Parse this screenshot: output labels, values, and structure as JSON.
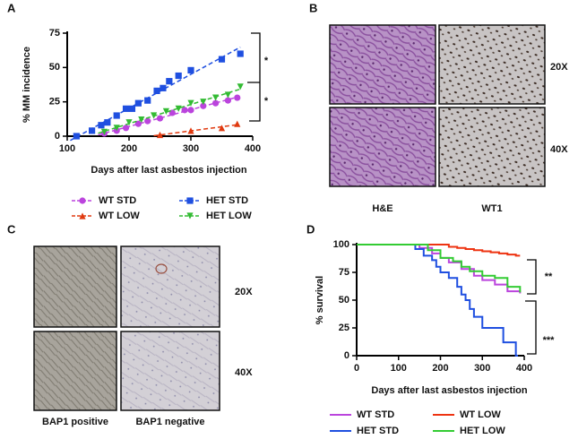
{
  "panel_labels": [
    "A",
    "B",
    "C",
    "D"
  ],
  "images": {
    "B": {
      "row_labels": [
        "20X",
        "40X"
      ],
      "column_labels": [
        "H&E",
        "WT1"
      ]
    },
    "C": {
      "row_labels": [
        "20X",
        "40X"
      ],
      "column_labels": [
        "BAP1 positive",
        "BAP1 negative"
      ]
    }
  },
  "chart_data": [
    {
      "type": "scatter",
      "ylabel": "% MM incidence",
      "xlabel": "Days after last asbestos injection",
      "xlim": [
        100,
        400
      ],
      "xticks": [
        100,
        200,
        300,
        400
      ],
      "ylim": [
        0,
        75
      ],
      "yticks": [
        0,
        25,
        50,
        75
      ],
      "trend_lines": true,
      "annotations": [
        "*",
        "*"
      ],
      "series": [
        {
          "name": "WT STD",
          "color": "#bb44dd",
          "marker": "circle",
          "x": [
            160,
            180,
            195,
            215,
            230,
            250,
            270,
            290,
            300,
            320,
            340,
            360,
            375
          ],
          "values": [
            2,
            4,
            6,
            9,
            11,
            13,
            17,
            19,
            19,
            22,
            24,
            26,
            28
          ]
        },
        {
          "name": "HET STD",
          "color": "#1f4fe0",
          "marker": "square",
          "x": [
            115,
            140,
            155,
            165,
            180,
            195,
            205,
            215,
            230,
            245,
            255,
            265,
            280,
            300,
            350,
            380
          ],
          "values": [
            0,
            4,
            8,
            10,
            15,
            20,
            20,
            24,
            26,
            33,
            35,
            40,
            44,
            48,
            56,
            60
          ]
        },
        {
          "name": "WT LOW",
          "color": "#e03a10",
          "marker": "triangle-up",
          "x": [
            250,
            300,
            350,
            375
          ],
          "values": [
            1,
            4,
            6,
            9
          ]
        },
        {
          "name": "HET LOW",
          "color": "#33bb33",
          "marker": "triangle-down",
          "x": [
            160,
            180,
            200,
            220,
            240,
            260,
            280,
            300,
            320,
            340,
            360,
            380
          ],
          "values": [
            3,
            6,
            10,
            12,
            15,
            18,
            20,
            24,
            25,
            28,
            30,
            36
          ]
        }
      ]
    },
    {
      "type": "step",
      "ylabel": "% survival",
      "xlabel": "Days after last asbestos injection",
      "xlim": [
        0,
        400
      ],
      "xticks": [
        0,
        100,
        200,
        300,
        400
      ],
      "ylim": [
        0,
        100
      ],
      "yticks": [
        0,
        25,
        50,
        75,
        100
      ],
      "annotations": [
        "**",
        "***"
      ],
      "series": [
        {
          "name": "WT STD",
          "color": "#bb44dd",
          "x": [
            0,
            150,
            180,
            200,
            220,
            250,
            280,
            300,
            330,
            360,
            390
          ],
          "values": [
            100,
            97,
            92,
            88,
            84,
            78,
            72,
            68,
            64,
            58,
            56
          ]
        },
        {
          "name": "WT LOW",
          "color": "#ee3311",
          "x": [
            0,
            150,
            220,
            240,
            260,
            280,
            300,
            320,
            340,
            360,
            380,
            390
          ],
          "values": [
            100,
            100,
            98,
            97,
            96,
            95,
            94,
            93,
            92,
            91,
            90,
            90
          ]
        },
        {
          "name": "HET STD",
          "color": "#1f4fe0",
          "x": [
            0,
            140,
            160,
            180,
            190,
            200,
            220,
            240,
            250,
            260,
            270,
            280,
            300,
            320,
            350,
            380,
            385
          ],
          "values": [
            100,
            96,
            90,
            86,
            80,
            75,
            70,
            62,
            55,
            50,
            42,
            35,
            25,
            25,
            12,
            0,
            0
          ]
        },
        {
          "name": "HET LOW",
          "color": "#33cc33",
          "x": [
            0,
            170,
            200,
            230,
            250,
            270,
            300,
            330,
            360,
            390
          ],
          "values": [
            100,
            95,
            88,
            85,
            80,
            76,
            72,
            70,
            62,
            57
          ]
        }
      ]
    }
  ]
}
